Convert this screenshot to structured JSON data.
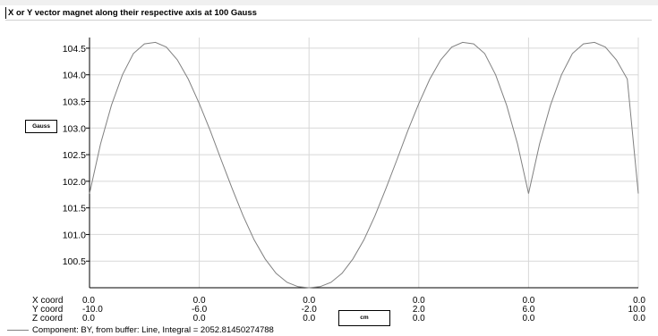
{
  "chart_data": {
    "type": "line",
    "title": "X or Y vector magnet along their respective axis at 100 Gauss",
    "ylabel": "Gauss",
    "xlabel": "cm",
    "ylim": [
      100.0,
      104.7
    ],
    "yticks": [
      "104.5",
      "104.0",
      "103.5",
      "103.0",
      "102.5",
      "102.0",
      "101.5",
      "101.0",
      "100.5"
    ],
    "ytick_values": [
      104.5,
      104.0,
      103.5,
      103.0,
      102.5,
      102.0,
      101.5,
      101.0,
      100.5
    ],
    "xlim": [
      -10.0,
      10.0
    ],
    "x_axes": [
      {
        "label": "X coord",
        "ticks": [
          "0.0",
          "0.0",
          "0.0",
          "0.0",
          "0.0",
          "0.0"
        ]
      },
      {
        "label": "Y coord",
        "ticks": [
          "-10.0",
          "-6.0",
          "-2.0",
          "2.0",
          "6.0",
          "10.0"
        ]
      },
      {
        "label": "Z coord",
        "ticks": [
          "0.0",
          "0.0",
          "0.0",
          "0.0",
          "0.0",
          "0.0"
        ]
      }
    ],
    "xtick_values": [
      -10.0,
      -6.0,
      -2.0,
      2.0,
      6.0,
      10.0
    ],
    "grid": true,
    "line_color": "#808080",
    "series": [
      {
        "legend": "Component: BY, from buffer: Line, Integral = 2052.81450274788",
        "x": [
          -10.0,
          -9.6,
          -9.2,
          -8.8,
          -8.4,
          -8.0,
          -7.6,
          -7.2,
          -6.8,
          -6.4,
          -6.0,
          -5.6,
          -5.2,
          -4.8,
          -4.4,
          -4.0,
          -3.6,
          -3.2,
          -2.8,
          -2.4,
          -2.0,
          -1.6,
          -1.2,
          -0.8,
          -0.4,
          0.0,
          0.4,
          0.8,
          1.2,
          1.6,
          2.0,
          2.4,
          2.8,
          3.2,
          3.6,
          4.0,
          4.4,
          4.8,
          5.2,
          5.6,
          6.0,
          6.4,
          6.8,
          7.2,
          7.6,
          8.0,
          8.4,
          8.8,
          9.2,
          9.6,
          10.0
        ],
        "y": [
          101.77,
          102.7,
          103.43,
          104.0,
          104.4,
          104.58,
          104.61,
          104.52,
          104.28,
          103.92,
          103.46,
          102.95,
          102.4,
          101.86,
          101.35,
          100.9,
          100.54,
          100.27,
          100.1,
          100.02,
          100.0,
          100.02,
          100.1,
          100.27,
          100.54,
          100.9,
          101.35,
          101.86,
          102.4,
          102.95,
          103.46,
          103.92,
          104.28,
          104.52,
          104.61,
          104.58,
          104.4,
          104.0,
          103.43,
          102.7,
          101.77,
          102.7,
          103.43,
          104.0,
          104.4,
          104.58,
          104.61,
          104.52,
          104.28,
          103.92,
          101.77
        ]
      }
    ]
  }
}
